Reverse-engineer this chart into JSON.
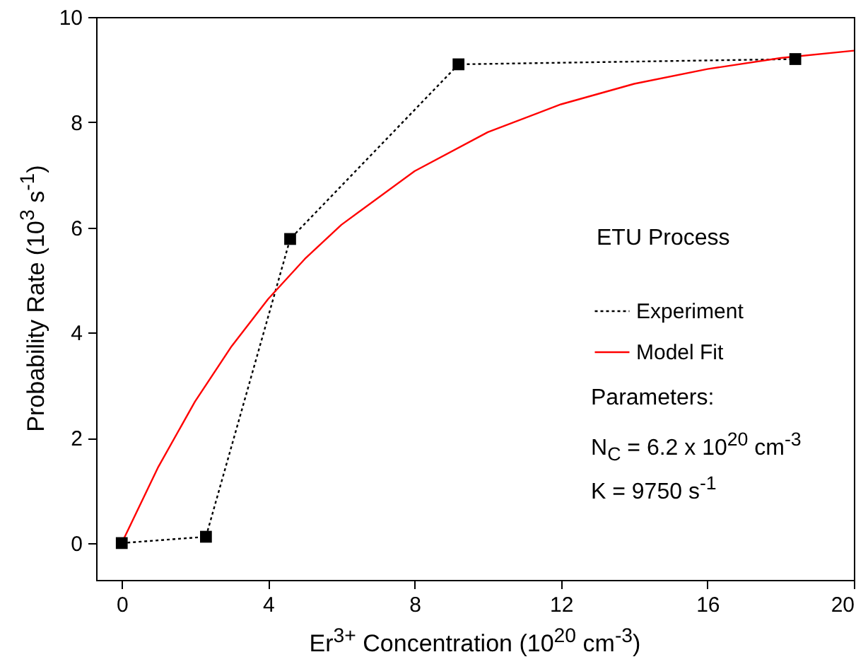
{
  "chart_data": {
    "type": "line",
    "xlabel": "Er$^{3+}$ Concentration (10$^{20}$ cm$^{-3}$)",
    "ylabel": "Probability Rate (10$^{3}$ s$^{-1}$)",
    "xlim": [
      -0.7,
      20
    ],
    "xticks": [
      0,
      4,
      8,
      12,
      16,
      20
    ],
    "ylim": [
      -0.7,
      10
    ],
    "yticks": [
      0,
      2,
      4,
      6,
      8,
      10
    ],
    "grid": false,
    "legend": "right",
    "annotations": [
      "ETU Process",
      "Parameters:",
      "N$_{C}$ = 6.2 x 10$^{20}$ cm$^{-3}$",
      "K = 9750 s$^{-1}$"
    ],
    "series": [
      {
        "name": "Experiment",
        "color": "#000000",
        "marker": "square",
        "line_style": "dotted",
        "x": [
          0,
          2.3,
          4.6,
          9.2,
          18.4
        ],
        "values": [
          0,
          0.12,
          5.78,
          9.1,
          9.2
        ]
      },
      {
        "name": "Model Fit",
        "color": "#ff0000",
        "marker": "none",
        "line_style": "solid",
        "x": [
          0,
          1,
          2,
          3,
          4,
          5,
          6,
          8,
          10,
          12,
          14,
          16,
          18,
          20
        ],
        "values": [
          0,
          1.45,
          2.69,
          3.74,
          4.64,
          5.4,
          6.05,
          7.07,
          7.81,
          8.34,
          8.73,
          9.01,
          9.22,
          9.36
        ]
      }
    ]
  }
}
